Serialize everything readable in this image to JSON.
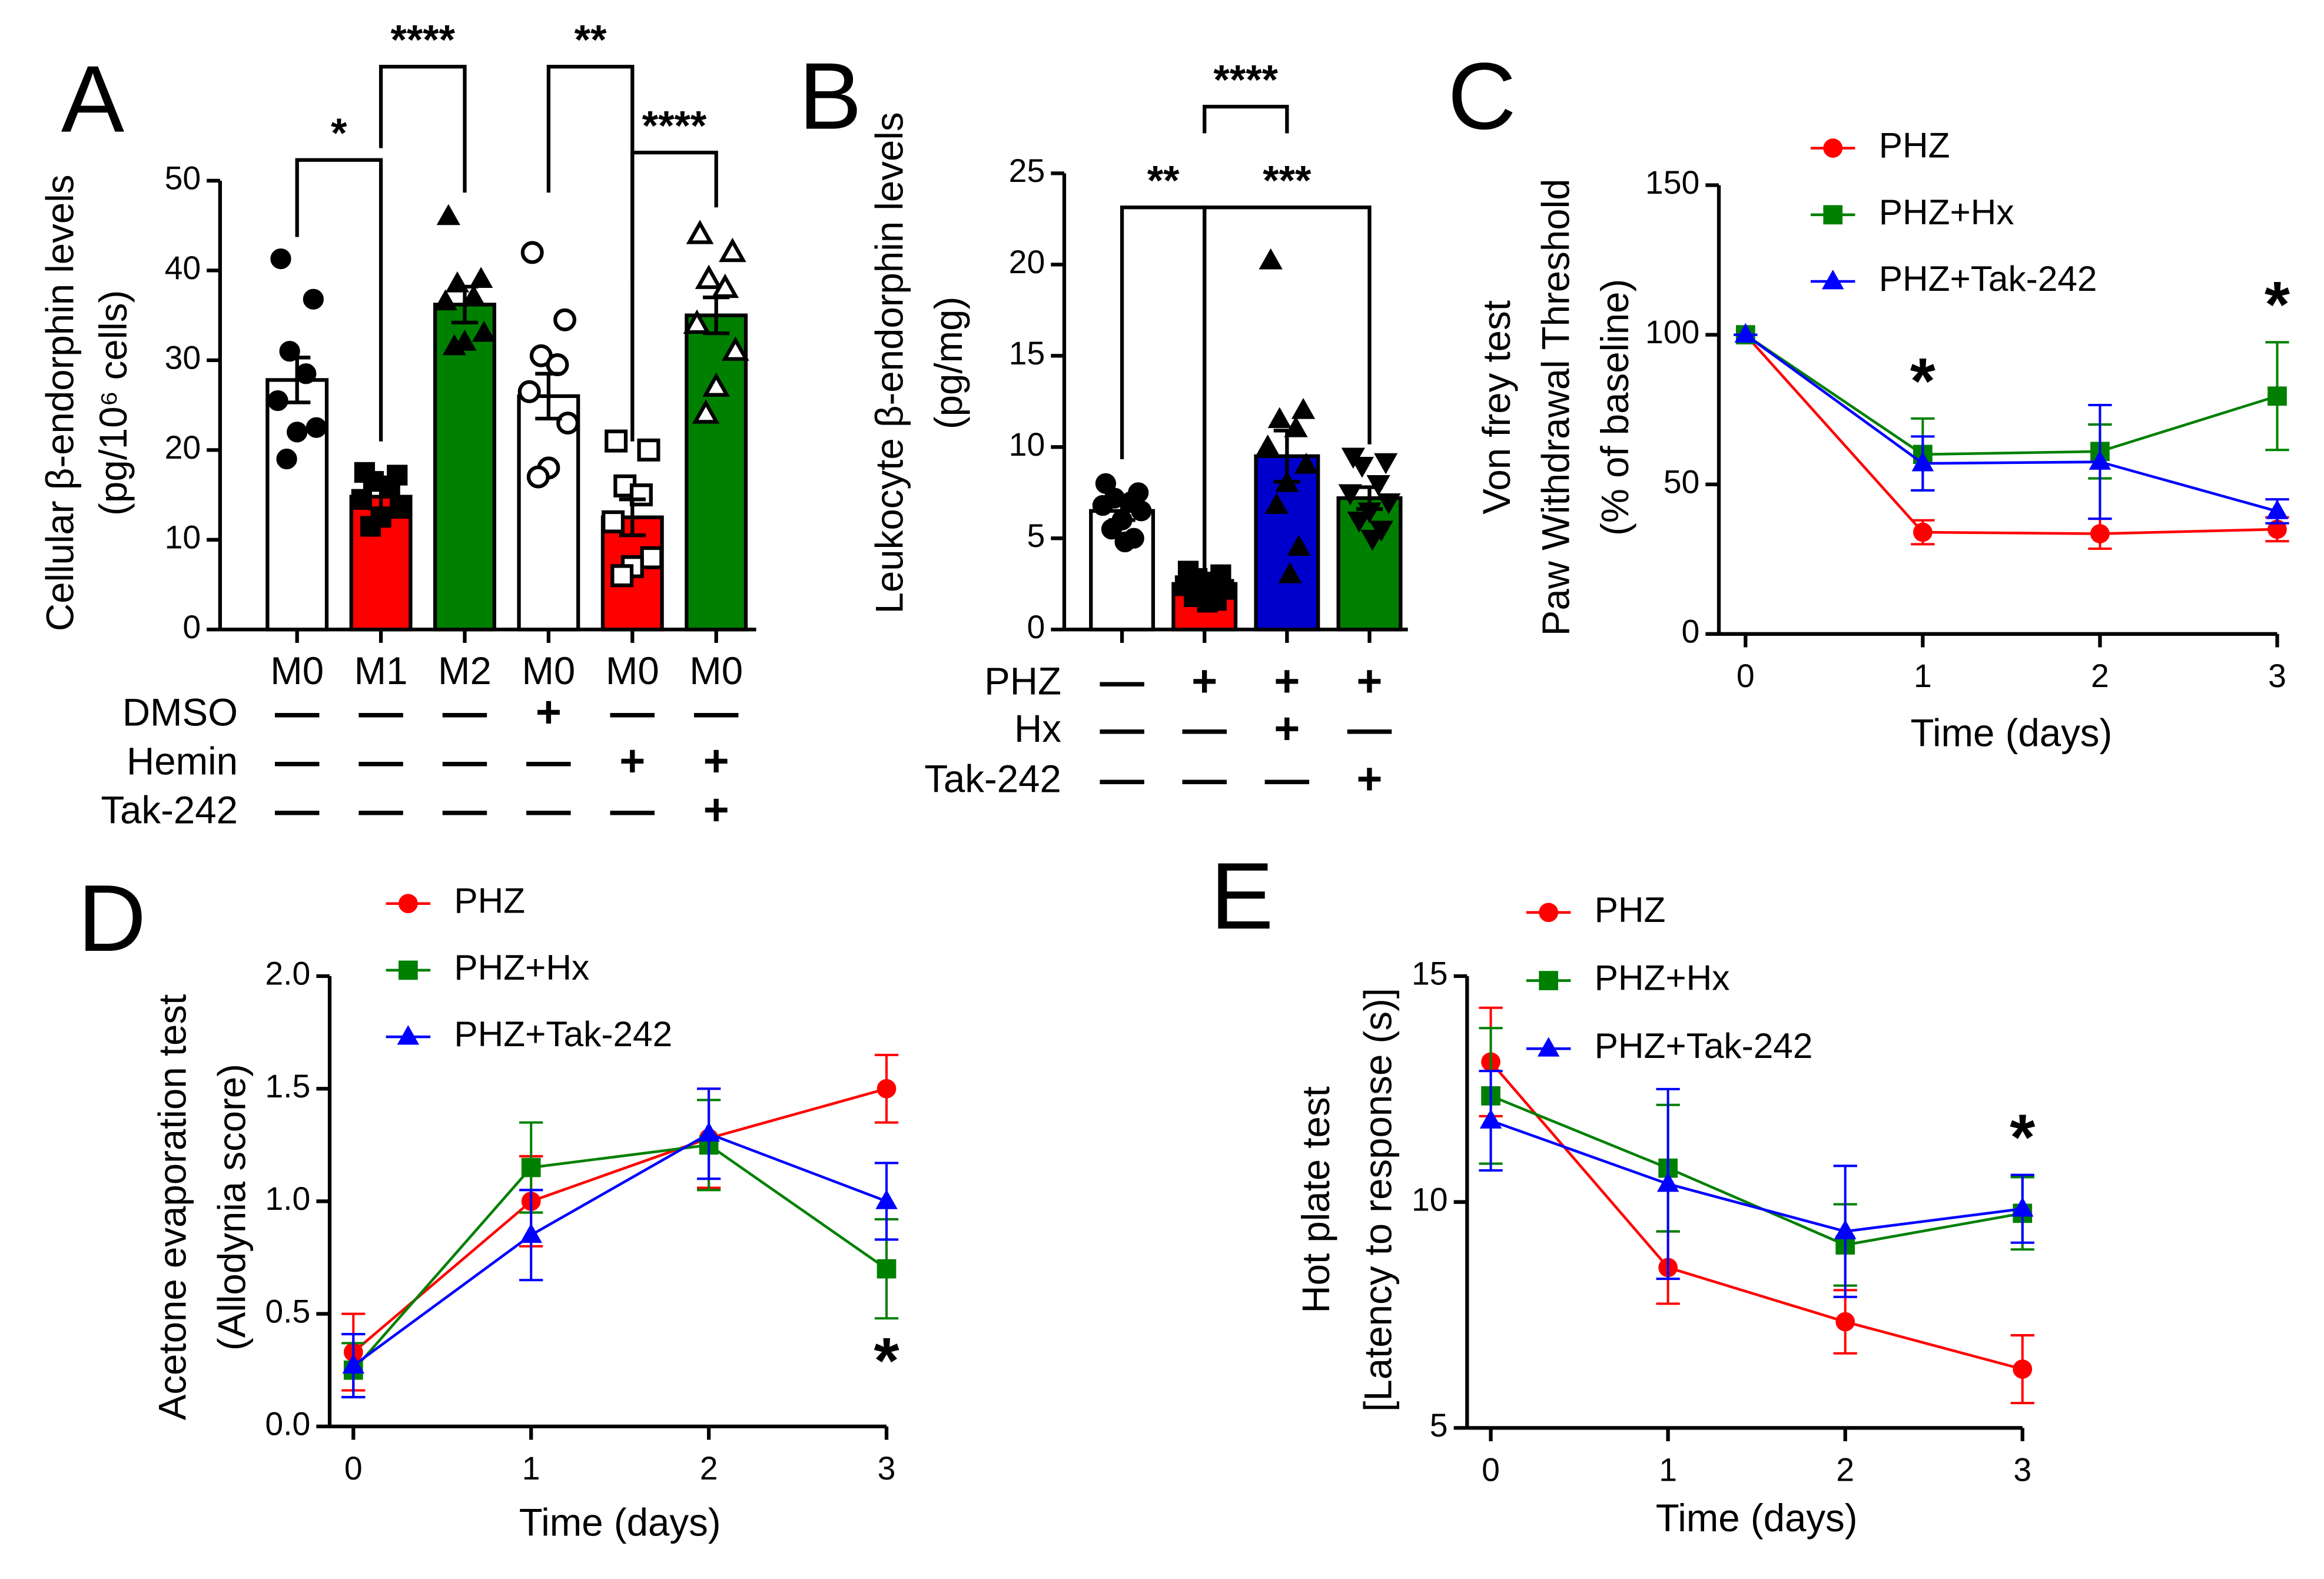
{
  "chart_data": [
    {
      "type": "bar",
      "panel": "A",
      "ylabel": [
        "Cellular β-endorphin levels",
        "(pg/10⁶ cells)"
      ],
      "categories": [
        "M0",
        "M1",
        "M2",
        "M0",
        "M0",
        "M0"
      ],
      "values": [
        27.8,
        14.8,
        36.2,
        26,
        12.5,
        35
      ],
      "errors": [
        2.5,
        1.3,
        2,
        2.5,
        2,
        2
      ],
      "colors": [
        "#ffffff",
        "#ff0000",
        "#008000",
        "#ffffff",
        "#ff0000",
        "#008000"
      ],
      "markers": [
        "circle",
        "square",
        "triangle",
        "circle-open",
        "square-open",
        "triangle-open"
      ],
      "points": [
        [
          41.3,
          36.8,
          31,
          28.5,
          25.5,
          22.5,
          22,
          19
        ],
        [
          17.5,
          17.2,
          16.5,
          16,
          14.5,
          13.5,
          12.5,
          11.5
        ],
        [
          46,
          39,
          38.5,
          37,
          36.5,
          33,
          32,
          31.5
        ],
        [
          42,
          34.5,
          30.5,
          29.5,
          26.5,
          23,
          18,
          17
        ],
        [
          21,
          20,
          16,
          15,
          12,
          8,
          7,
          6
        ],
        [
          44,
          42,
          39,
          38,
          34,
          31,
          27,
          24
        ]
      ],
      "ylim": [
        0,
        50
      ],
      "yticks": [
        0,
        10,
        20,
        30,
        40,
        50
      ],
      "rows": [
        {
          "label": "DMSO",
          "values": [
            "—",
            "—",
            "—",
            "+",
            "—",
            "—"
          ]
        },
        {
          "label": "Hemin",
          "values": [
            "—",
            "—",
            "—",
            "—",
            "+",
            "+"
          ]
        },
        {
          "label": "Tak-242",
          "values": [
            "—",
            "—",
            "—",
            "—",
            "—",
            "+"
          ]
        }
      ],
      "significance": [
        {
          "label": "*",
          "from": 0,
          "to": 1
        },
        {
          "label": "****",
          "from": 1,
          "to": 2
        },
        {
          "label": "**",
          "from": 3,
          "to": 4
        },
        {
          "label": "****",
          "from": 4,
          "to": 5
        }
      ]
    },
    {
      "type": "bar",
      "panel": "B",
      "ylabel": [
        "Leukocyte β-endorphin levels",
        "(pg/mg)"
      ],
      "values": [
        6.5,
        2.5,
        9.5,
        7.2
      ],
      "errors": [
        0.5,
        0.3,
        1.4,
        0.6
      ],
      "colors": [
        "#ffffff",
        "#ff0000",
        "#0000cc",
        "#008000"
      ],
      "markers": [
        "circle",
        "square",
        "triangle",
        "triangle-down"
      ],
      "points": [
        [
          8,
          7.5,
          7.2,
          7,
          6.8,
          6.5,
          6,
          5.5,
          5,
          4.8
        ],
        [
          3.2,
          3,
          2.8,
          2.6,
          2.4,
          2.2,
          2,
          1.8,
          1.6,
          1.5
        ],
        [
          20.2,
          12,
          11.5,
          11,
          10,
          9,
          8,
          6.8,
          4.5,
          3
        ],
        [
          9.5,
          9.2,
          9,
          8,
          7.5,
          7,
          6.5,
          6,
          5.5,
          5
        ]
      ],
      "ylim": [
        0,
        25
      ],
      "yticks": [
        0,
        5,
        10,
        15,
        20,
        25
      ],
      "rows": [
        {
          "label": "PHZ",
          "values": [
            "—",
            "+",
            "+",
            "+"
          ]
        },
        {
          "label": "Hx",
          "values": [
            "—",
            "—",
            "+",
            "—"
          ]
        },
        {
          "label": "Tak-242",
          "values": [
            "—",
            "—",
            "—",
            "+"
          ]
        }
      ],
      "significance": [
        {
          "label": "**",
          "from": 0,
          "to": 1
        },
        {
          "label": "****",
          "from": 1,
          "to": 2
        },
        {
          "label": "***",
          "from": 1,
          "to": 3
        }
      ]
    },
    {
      "type": "line",
      "panel": "C",
      "ylabel": [
        "Von frey test",
        "Paw Withdrawal Threshold",
        "(% of baseline)"
      ],
      "xlabel": "Time (days)",
      "x": [
        0,
        1,
        2,
        3
      ],
      "xlim": [
        0,
        3
      ],
      "xticks": [
        0,
        1,
        2,
        3
      ],
      "ylim": [
        0,
        150
      ],
      "yticks": [
        0,
        50,
        100,
        150
      ],
      "series": [
        {
          "name": "PHZ",
          "color": "#ff0000",
          "marker": "circle",
          "values": [
            100,
            34,
            33.5,
            35
          ],
          "errors": [
            0,
            4,
            5,
            4
          ]
        },
        {
          "name": "PHZ+Hx",
          "color": "#008000",
          "marker": "square",
          "values": [
            100,
            60,
            61,
            79.5
          ],
          "errors": [
            0,
            12,
            9,
            18
          ]
        },
        {
          "name": "PHZ+Tak-242",
          "color": "#0000ff",
          "marker": "triangle",
          "values": [
            100,
            57,
            57.5,
            41
          ],
          "errors": [
            0,
            9,
            19,
            4
          ]
        }
      ],
      "annotations": [
        {
          "text": "*",
          "x": 1
        },
        {
          "text": "*",
          "x": 3
        }
      ]
    },
    {
      "type": "line",
      "panel": "D",
      "ylabel": [
        "Acetone evaporation test",
        "(Allodynia score)"
      ],
      "xlabel": "Time (days)",
      "x": [
        0,
        1,
        2,
        3
      ],
      "xlim": [
        0,
        3
      ],
      "xticks": [
        0,
        1,
        2,
        3
      ],
      "ylim": [
        0,
        2
      ],
      "yticks": [
        {
          "value": 0,
          "label": "0.0"
        },
        {
          "value": 0.5,
          "label": "0.5"
        },
        {
          "value": 1,
          "label": "1.0"
        },
        {
          "value": 1.5,
          "label": "1.5"
        },
        {
          "value": 2,
          "label": "2.0"
        }
      ],
      "series": [
        {
          "name": "PHZ",
          "color": "#ff0000",
          "marker": "circle",
          "values": [
            0.33,
            1.0,
            1.28,
            1.5
          ],
          "errors": [
            0.17,
            0.2,
            0.22,
            0.15
          ]
        },
        {
          "name": "PHZ+Hx",
          "color": "#008000",
          "marker": "square",
          "values": [
            0.25,
            1.15,
            1.25,
            0.7
          ],
          "errors": [
            0.12,
            0.2,
            0.2,
            0.22
          ]
        },
        {
          "name": "PHZ+Tak-242",
          "color": "#0000ff",
          "marker": "triangle",
          "values": [
            0.27,
            0.85,
            1.3,
            1.0
          ],
          "errors": [
            0.14,
            0.2,
            0.2,
            0.17
          ]
        }
      ],
      "annotations": [
        {
          "text": "*",
          "x": 3
        }
      ]
    },
    {
      "type": "line",
      "panel": "E",
      "ylabel": [
        "Hot plate test",
        "[Latency to response (s)]"
      ],
      "xlabel": "Time (days)",
      "x": [
        0,
        1,
        2,
        3
      ],
      "xlim": [
        0,
        3
      ],
      "xticks": [
        0,
        1,
        2,
        3
      ],
      "ylim": [
        5,
        15
      ],
      "yticks": [
        5,
        10,
        15
      ],
      "series": [
        {
          "name": "PHZ",
          "color": "#ff0000",
          "marker": "circle",
          "values": [
            13.1,
            8.55,
            7.35,
            6.3
          ],
          "errors": [
            1.2,
            0.8,
            0.7,
            0.75
          ]
        },
        {
          "name": "PHZ+Hx",
          "color": "#008000",
          "marker": "square",
          "values": [
            12.35,
            10.75,
            9.05,
            9.75
          ],
          "errors": [
            1.5,
            1.4,
            0.9,
            0.8
          ]
        },
        {
          "name": "PHZ+Tak-242",
          "color": "#0000ff",
          "marker": "triangle",
          "values": [
            11.8,
            10.4,
            9.35,
            9.85
          ],
          "errors": [
            1.1,
            2.1,
            1.45,
            0.75
          ]
        }
      ],
      "annotations": [
        {
          "text": "*",
          "x": 3
        }
      ]
    }
  ]
}
